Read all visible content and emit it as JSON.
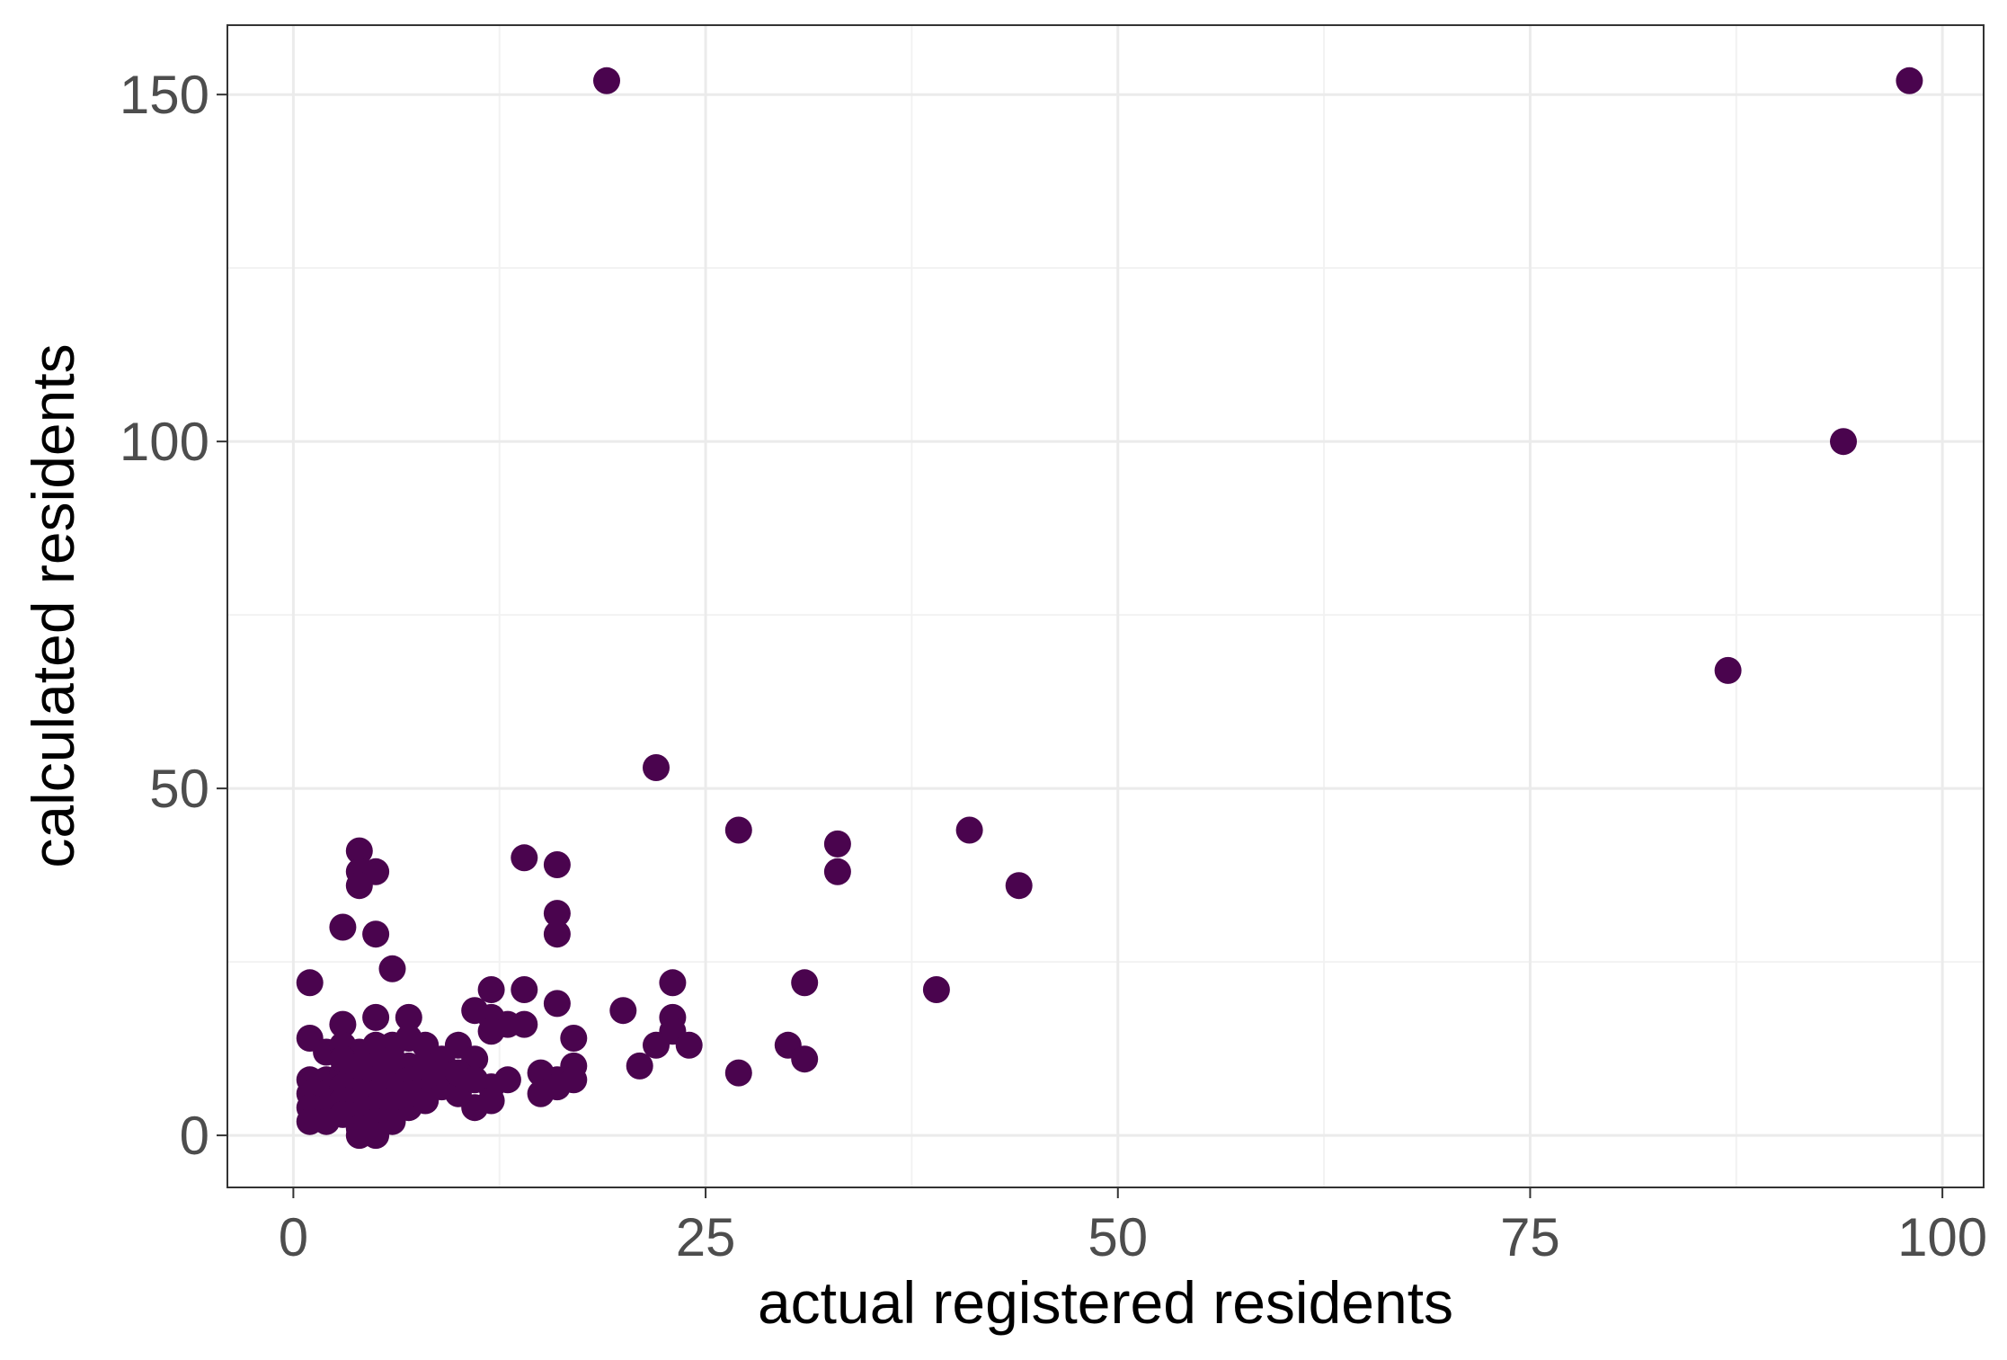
{
  "chart_data": {
    "type": "scatter",
    "title": "",
    "xlabel": "actual registered residents",
    "ylabel": "calculated residents",
    "xlim": [
      -4,
      102.5
    ],
    "ylim": [
      -7.5,
      160
    ],
    "x_ticks": [
      0,
      25,
      50,
      75,
      100
    ],
    "y_ticks": [
      0,
      50,
      100,
      150
    ],
    "x_tick_labels": [
      "0",
      "25",
      "50",
      "75",
      "100"
    ],
    "y_tick_labels": [
      "0",
      "50",
      "100",
      "150"
    ],
    "grid": true,
    "legend": "none",
    "point_color": "#4a044e",
    "series": [
      {
        "name": "residents",
        "points": [
          [
            19,
            152
          ],
          [
            98,
            152
          ],
          [
            94,
            100
          ],
          [
            87,
            67
          ],
          [
            22,
            53
          ],
          [
            27,
            44
          ],
          [
            41,
            44
          ],
          [
            33,
            42
          ],
          [
            33,
            38
          ],
          [
            44,
            36
          ],
          [
            4,
            41
          ],
          [
            4,
            38
          ],
          [
            5,
            38
          ],
          [
            4,
            36
          ],
          [
            14,
            40
          ],
          [
            16,
            39
          ],
          [
            16,
            32
          ],
          [
            16,
            29
          ],
          [
            3,
            30
          ],
          [
            5,
            29
          ],
          [
            6,
            24
          ],
          [
            1,
            22
          ],
          [
            12,
            21
          ],
          [
            14,
            21
          ],
          [
            23,
            22
          ],
          [
            31,
            22
          ],
          [
            39,
            21
          ],
          [
            16,
            19
          ],
          [
            20,
            18
          ],
          [
            11,
            18
          ],
          [
            12,
            17
          ],
          [
            13,
            16
          ],
          [
            14,
            16
          ],
          [
            3,
            16
          ],
          [
            5,
            17
          ],
          [
            7,
            17
          ],
          [
            23,
            17
          ],
          [
            23,
            15
          ],
          [
            22,
            13
          ],
          [
            24,
            13
          ],
          [
            30,
            13
          ],
          [
            31,
            11
          ],
          [
            17,
            14
          ],
          [
            1,
            14
          ],
          [
            12,
            15
          ],
          [
            2,
            12
          ],
          [
            3,
            13
          ],
          [
            4,
            12
          ],
          [
            5,
            13
          ],
          [
            6,
            13
          ],
          [
            7,
            14
          ],
          [
            8,
            13
          ],
          [
            10,
            13
          ],
          [
            11,
            11
          ],
          [
            9,
            11
          ],
          [
            21,
            10
          ],
          [
            27,
            9
          ],
          [
            15,
            9
          ],
          [
            17,
            10
          ],
          [
            13,
            8
          ],
          [
            16,
            8
          ],
          [
            17,
            8
          ],
          [
            15,
            6
          ],
          [
            16,
            7
          ],
          [
            12,
            7
          ],
          [
            12,
            5
          ],
          [
            11,
            4
          ],
          [
            10,
            6
          ],
          [
            9,
            7
          ],
          [
            8,
            8
          ],
          [
            8,
            5
          ],
          [
            7,
            4
          ],
          [
            6,
            3
          ],
          [
            1,
            8
          ],
          [
            1,
            6
          ],
          [
            2,
            8
          ],
          [
            2,
            6
          ],
          [
            2,
            4
          ],
          [
            3,
            9
          ],
          [
            3,
            7
          ],
          [
            3,
            5
          ],
          [
            3,
            3
          ],
          [
            4,
            9
          ],
          [
            4,
            7
          ],
          [
            4,
            5
          ],
          [
            4,
            3
          ],
          [
            4,
            1
          ],
          [
            4,
            0
          ],
          [
            5,
            10
          ],
          [
            5,
            8
          ],
          [
            5,
            6
          ],
          [
            5,
            4
          ],
          [
            5,
            2
          ],
          [
            5,
            0
          ],
          [
            6,
            9
          ],
          [
            6,
            7
          ],
          [
            6,
            5
          ],
          [
            6,
            11
          ],
          [
            7,
            10
          ],
          [
            7,
            8
          ],
          [
            7,
            6
          ],
          [
            8,
            10
          ],
          [
            9,
            9
          ],
          [
            10,
            9
          ],
          [
            11,
            8
          ],
          [
            1,
            4
          ],
          [
            1,
            2
          ],
          [
            2,
            2
          ],
          [
            3,
            11
          ],
          [
            4,
            10
          ],
          [
            6,
            2
          ]
        ]
      }
    ]
  }
}
